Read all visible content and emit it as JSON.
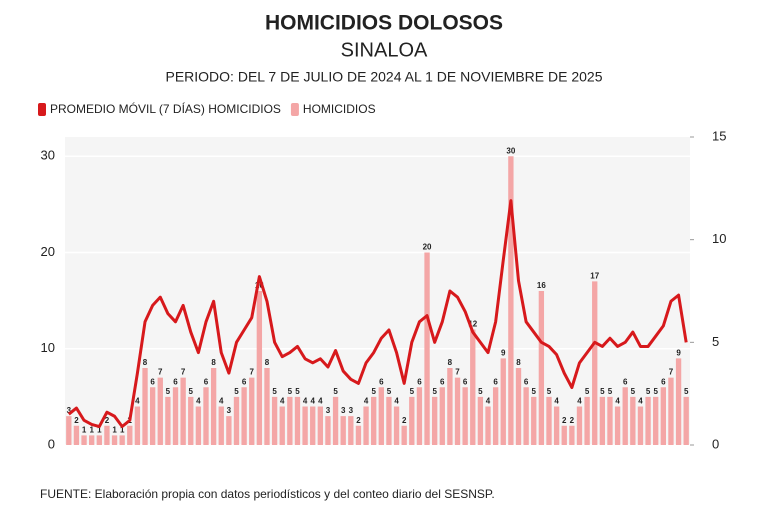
{
  "chart_data": {
    "type": "bar-line",
    "title": "HOMICIDIOS DOLOSOS",
    "subtitle": "SINALOA",
    "period": "PERIODO: DEL 7 DE JULIO DE 2024 AL 1 DE NOVIEMBRE DE 2025",
    "source": "FUENTE: Elaboración propia con datos periodísticos y del conteo diario del SESNSP.",
    "ylim": [
      0,
      32
    ],
    "yticks": [
      0,
      10,
      20,
      30
    ],
    "y2lim": [
      0,
      15
    ],
    "y2ticks": [
      0,
      5,
      10,
      15
    ],
    "grid": true,
    "series": [
      {
        "name": "PROMEDIO MÓVIL (7 DÍAS) HOMICIDIOS",
        "color": "#d7191c",
        "axis": "y2",
        "kind": "line",
        "values": [
          1.5,
          1.8,
          1.2,
          1.0,
          0.9,
          1.6,
          1.4,
          0.9,
          1.2,
          3.5,
          6.0,
          6.8,
          7.2,
          6.4,
          6.0,
          6.8,
          5.5,
          4.5,
          6.0,
          7.0,
          4.5,
          3.5,
          5.0,
          5.6,
          6.2,
          8.2,
          7.0,
          5.0,
          4.3,
          4.5,
          4.8,
          4.2,
          4.0,
          4.2,
          3.8,
          4.6,
          3.6,
          3.2,
          3.0,
          4.0,
          4.5,
          5.2,
          5.6,
          4.5,
          3.0,
          5.0,
          6.0,
          6.3,
          5.0,
          6.0,
          7.5,
          7.2,
          6.5,
          5.5,
          5.0,
          4.5,
          6.0,
          9.0,
          11.9,
          8.0,
          6.0,
          5.5,
          5.0,
          4.8,
          4.4,
          3.5,
          2.8,
          4.0,
          4.5,
          5.0,
          4.8,
          5.2,
          4.8,
          5.0,
          5.5,
          4.8,
          4.8,
          5.3,
          5.8,
          7.0,
          7.3,
          5.0
        ]
      },
      {
        "name": "HOMICIDIOS",
        "color": "#f4a6a6",
        "kind": "bar",
        "values": [
          3,
          2,
          1,
          1,
          1,
          2,
          1,
          1,
          2,
          4,
          8,
          6,
          7,
          5,
          6,
          7,
          5,
          4,
          6,
          8,
          4,
          3,
          5,
          6,
          7,
          16,
          8,
          5,
          4,
          5,
          5,
          4,
          4,
          4,
          3,
          5,
          3,
          3,
          2,
          4,
          5,
          6,
          5,
          4,
          2,
          5,
          6,
          20,
          5,
          6,
          8,
          7,
          6,
          12,
          5,
          4,
          6,
          9,
          30,
          8,
          6,
          5,
          16,
          5,
          4,
          2,
          2,
          4,
          5,
          17,
          5,
          5,
          4,
          6,
          5,
          4,
          5,
          5,
          6,
          7,
          9,
          5
        ]
      }
    ]
  }
}
